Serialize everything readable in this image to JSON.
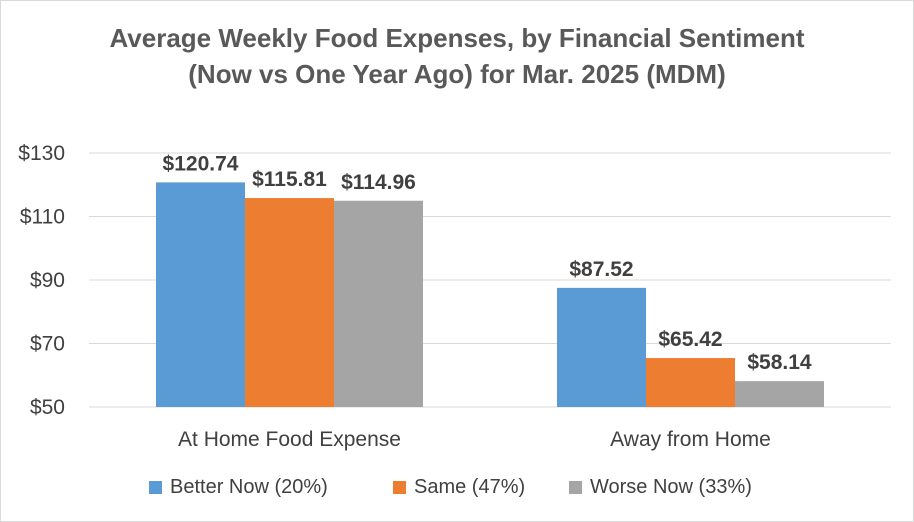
{
  "chart_data": {
    "type": "bar",
    "title_lines": [
      "Average Weekly Food Expenses, by Financial Sentiment",
      "(Now vs One Year Ago) for Mar. 2025 (MDM)"
    ],
    "categories": [
      "At Home Food Expense",
      "Away from Home"
    ],
    "series": [
      {
        "name": "Better Now (20%)",
        "color": "#5b9bd5",
        "values": [
          120.74,
          87.52
        ],
        "labels": [
          "$120.74",
          "$87.52"
        ]
      },
      {
        "name": "Same (47%)",
        "color": "#ed7d31",
        "values": [
          115.81,
          65.42
        ],
        "labels": [
          "$115.81",
          "$65.42"
        ]
      },
      {
        "name": "Worse Now (33%)",
        "color": "#a5a5a5",
        "values": [
          114.96,
          58.14
        ],
        "labels": [
          "$114.96",
          "$58.14"
        ]
      }
    ],
    "ylim": [
      50,
      130
    ],
    "yticks": [
      50,
      70,
      90,
      110,
      130
    ],
    "ytick_labels": [
      "$50",
      "$70",
      "$90",
      "$110",
      "$130"
    ],
    "grid": true,
    "legend_position": "bottom"
  }
}
